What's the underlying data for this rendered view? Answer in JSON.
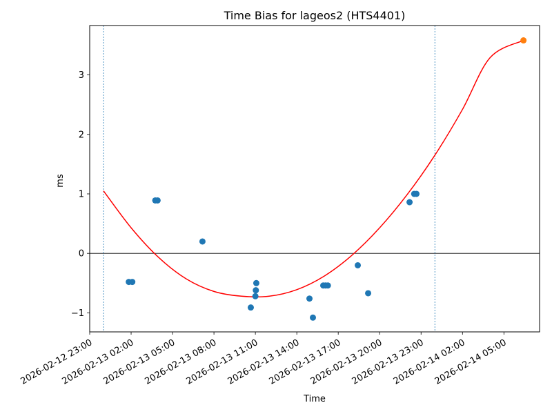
{
  "chart_data": {
    "type": "scatter",
    "title": "Time Bias for lageos2 (HTS4401)",
    "xlabel": "Time",
    "ylabel": "ms",
    "xlim": [
      "2026-02-12 23:00",
      "2026-02-14 07:35"
    ],
    "ylim": [
      -1.32,
      3.83
    ],
    "x_ticks": [
      "2026-02-12 23:00",
      "2026-02-13 02:00",
      "2026-02-13 05:00",
      "2026-02-13 08:00",
      "2026-02-13 11:00",
      "2026-02-13 14:00",
      "2026-02-13 17:00",
      "2026-02-13 20:00",
      "2026-02-13 23:00",
      "2026-02-14 02:00",
      "2026-02-14 05:00"
    ],
    "y_ticks": [
      -1,
      0,
      1,
      2,
      3
    ],
    "grid": false,
    "reference_lines": {
      "horizontal": [
        0
      ],
      "vertical": [
        "2026-02-13 00:00",
        "2026-02-14 00:00"
      ]
    },
    "series": [
      {
        "kind": "points",
        "color": "#1f77b4",
        "points": [
          {
            "x": "2026-02-13 01:50",
            "y": -0.48
          },
          {
            "x": "2026-02-13 02:05",
            "y": -0.48
          },
          {
            "x": "2026-02-13 03:45",
            "y": 0.89
          },
          {
            "x": "2026-02-13 03:55",
            "y": 0.89
          },
          {
            "x": "2026-02-13 07:10",
            "y": 0.2
          },
          {
            "x": "2026-02-13 10:40",
            "y": -0.91
          },
          {
            "x": "2026-02-13 11:00",
            "y": -0.72
          },
          {
            "x": "2026-02-13 11:02",
            "y": -0.62
          },
          {
            "x": "2026-02-13 11:04",
            "y": -0.5
          },
          {
            "x": "2026-02-13 14:55",
            "y": -0.76
          },
          {
            "x": "2026-02-13 15:10",
            "y": -1.08
          },
          {
            "x": "2026-02-13 15:55",
            "y": -0.54
          },
          {
            "x": "2026-02-13 16:05",
            "y": -0.54
          },
          {
            "x": "2026-02-13 16:15",
            "y": -0.54
          },
          {
            "x": "2026-02-13 18:25",
            "y": -0.2
          },
          {
            "x": "2026-02-13 19:10",
            "y": -0.67
          },
          {
            "x": "2026-02-13 22:10",
            "y": 0.86
          },
          {
            "x": "2026-02-13 22:30",
            "y": 1.0
          },
          {
            "x": "2026-02-13 22:40",
            "y": 1.0
          }
        ]
      },
      {
        "kind": "prediction",
        "color": "#ff7f0e",
        "points": [
          {
            "x": "2026-02-14 06:25",
            "y": 3.58
          }
        ]
      },
      {
        "kind": "fit",
        "color": "#ff0000",
        "points": [
          {
            "x": "2026-02-13 00:00",
            "y": 1.05
          },
          {
            "x": "2026-02-13 02:00",
            "y": 0.43
          },
          {
            "x": "2026-02-13 04:00",
            "y": -0.07
          },
          {
            "x": "2026-02-13 06:00",
            "y": -0.43
          },
          {
            "x": "2026-02-13 08:00",
            "y": -0.64
          },
          {
            "x": "2026-02-13 10:00",
            "y": -0.72
          },
          {
            "x": "2026-02-13 12:00",
            "y": -0.72
          },
          {
            "x": "2026-02-13 14:00",
            "y": -0.61
          },
          {
            "x": "2026-02-13 16:00",
            "y": -0.38
          },
          {
            "x": "2026-02-13 18:00",
            "y": -0.03
          },
          {
            "x": "2026-02-13 20:00",
            "y": 0.43
          },
          {
            "x": "2026-02-13 22:00",
            "y": 0.99
          },
          {
            "x": "2026-02-14 00:00",
            "y": 1.65
          },
          {
            "x": "2026-02-14 02:00",
            "y": 2.42
          },
          {
            "x": "2026-02-14 04:00",
            "y": 3.29
          },
          {
            "x": "2026-02-14 06:25",
            "y": 3.58
          }
        ]
      }
    ]
  }
}
